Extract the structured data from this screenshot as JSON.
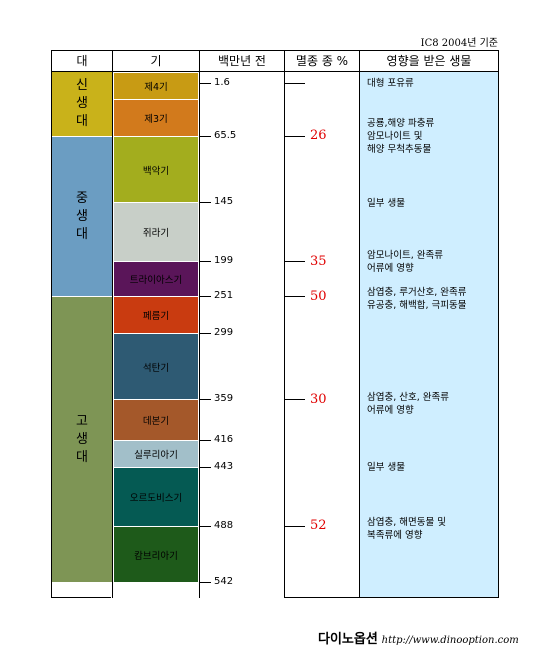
{
  "note": "IC8 2004년 기준",
  "headers": {
    "era": "대",
    "period": "기",
    "mya": "백만년  전",
    "extinction": "멸종 종 %",
    "effect": "영향을 받은 생물"
  },
  "eras": [
    {
      "label": "신\n생\n대",
      "color": "#c9b21a"
    },
    {
      "label": "중\n생\n대",
      "color": "#6b9dc2"
    },
    {
      "label": "고\n생\n대",
      "color": "#7e9555"
    }
  ],
  "periods": [
    {
      "label": "제4기",
      "color": "#c89b14"
    },
    {
      "label": "제3기",
      "color": "#d27a1c"
    },
    {
      "label": "백악기",
      "color": "#a3ad1e"
    },
    {
      "label": "쥐라기",
      "color": "#c8cfc8"
    },
    {
      "label": "트라이아스기",
      "color": "#5a1559"
    },
    {
      "label": "페름기",
      "color": "#c93b10"
    },
    {
      "label": "석탄기",
      "color": "#2e5a73"
    },
    {
      "label": "데본기",
      "color": "#a4582a"
    },
    {
      "label": "실루리아기",
      "color": "#a2bfc9"
    },
    {
      "label": "오르도비스기",
      "color": "#055a53"
    },
    {
      "label": "캄브리아기",
      "color": "#1e5a1a"
    }
  ],
  "ages": [
    "1.6",
    "65.5",
    "145",
    "199",
    "251",
    "299",
    "359",
    "416",
    "443",
    "488",
    "542"
  ],
  "extinctions": [
    "26",
    "35",
    "50",
    "30",
    "52"
  ],
  "effects": [
    "대형 포유류",
    "공룡,해양 파충류\n암모나이트 및\n해양 무척추동물",
    "일부 생물",
    "암모나이트, 완족류\n어류에 영향",
    "삼엽충, 루거산호, 완족류\n유공충, 해백합, 극피동물",
    "삼엽충, 산호, 완족류\n어류에 영향",
    "일부 생물",
    "삼엽충, 해면동물 및\n복족류에 영향"
  ],
  "footer": {
    "brand": "다이노옵션",
    "url": "http://www.dinooption.com"
  }
}
